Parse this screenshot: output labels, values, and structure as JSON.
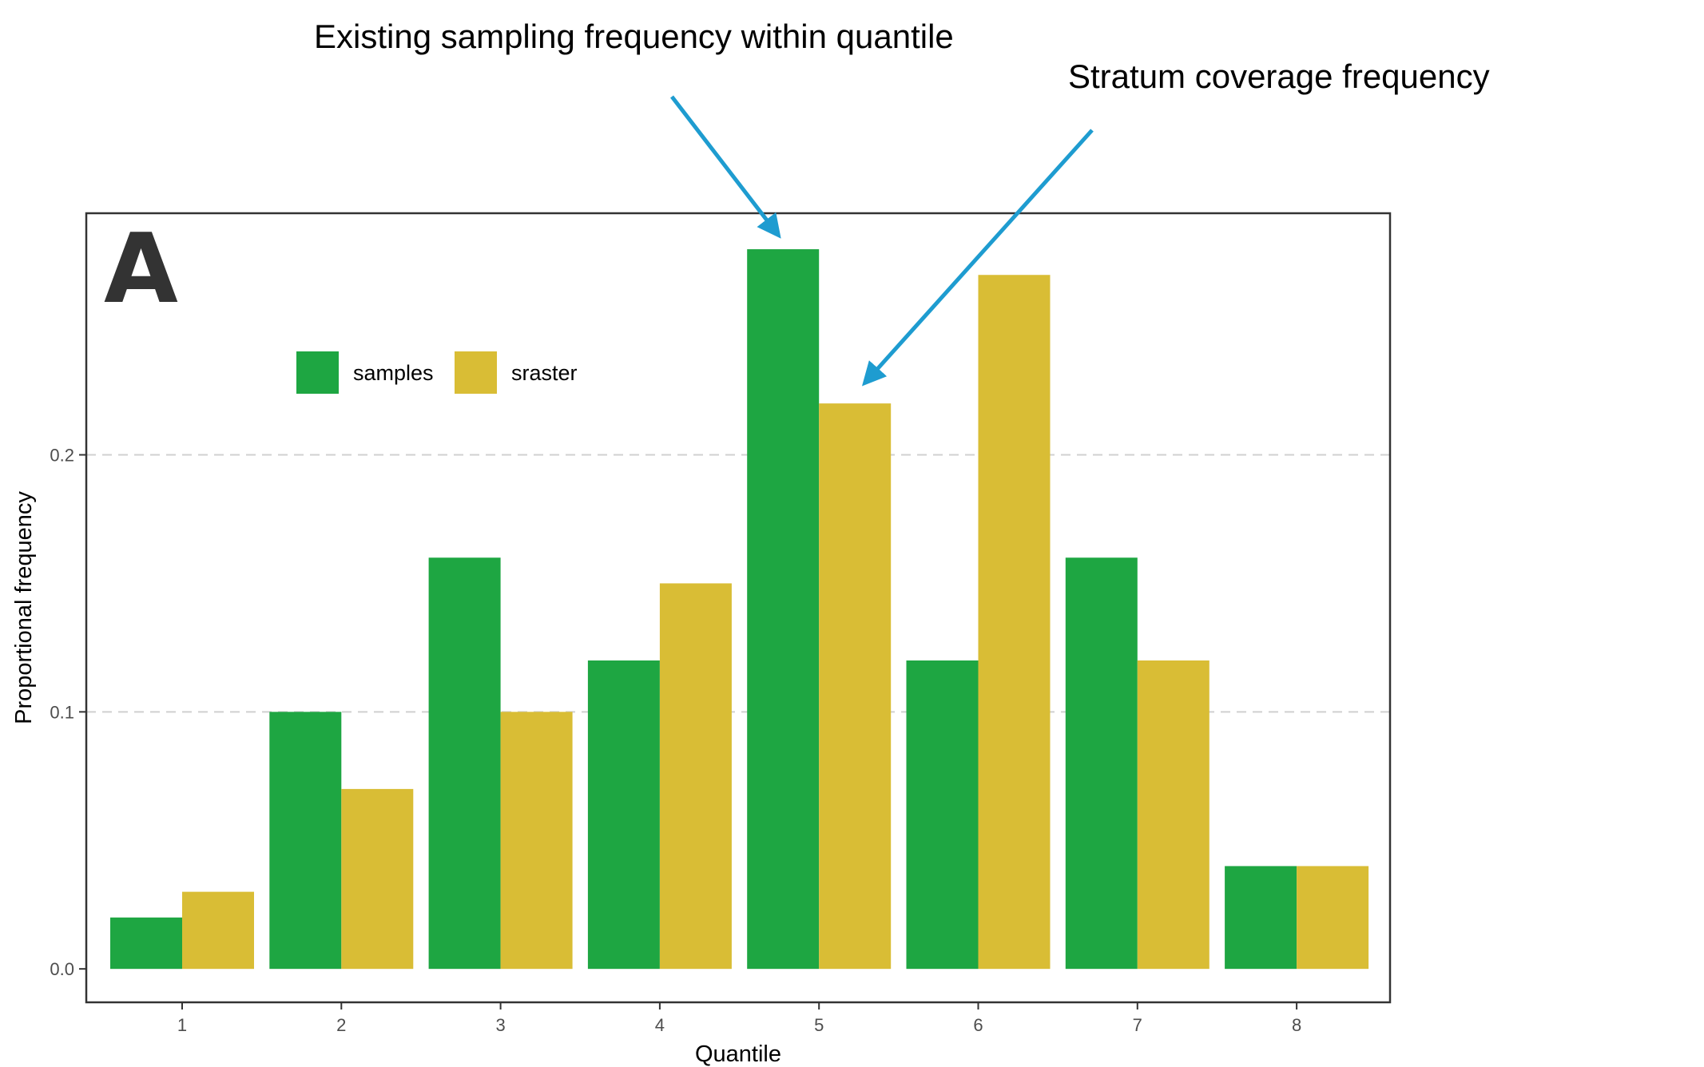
{
  "colors": {
    "samples": "#1ea642",
    "sraster": "#d9bd35",
    "arrow": "#1e9cd0",
    "panel_border": "#333333",
    "gridline": "#d0d0d0"
  },
  "panel_label": "A",
  "annotations": [
    {
      "text": "Existing sampling frequency within quantile",
      "points_to": {
        "category": "5",
        "series": "samples"
      }
    },
    {
      "text": "Stratum coverage frequency",
      "points_to": {
        "category": "5",
        "series": "sraster"
      }
    }
  ],
  "chart_data": {
    "type": "bar",
    "title": "",
    "xlabel": "Quantile",
    "ylabel": "Proportional frequency",
    "categories": [
      "1",
      "2",
      "3",
      "4",
      "5",
      "6",
      "7",
      "8"
    ],
    "series": [
      {
        "name": "samples",
        "values": [
          0.02,
          0.1,
          0.16,
          0.12,
          0.28,
          0.12,
          0.16,
          0.04
        ]
      },
      {
        "name": "sraster",
        "values": [
          0.03,
          0.07,
          0.1,
          0.15,
          0.22,
          0.27,
          0.12,
          0.04
        ]
      }
    ],
    "ylim": [
      -0.013,
      0.294
    ],
    "yticks": [
      0.0,
      0.1,
      0.2
    ],
    "ytick_labels": [
      "0.0",
      "0.1",
      "0.2"
    ],
    "grid": "horizontal major dashed",
    "legend_position": "top-left inside, horizontal"
  }
}
